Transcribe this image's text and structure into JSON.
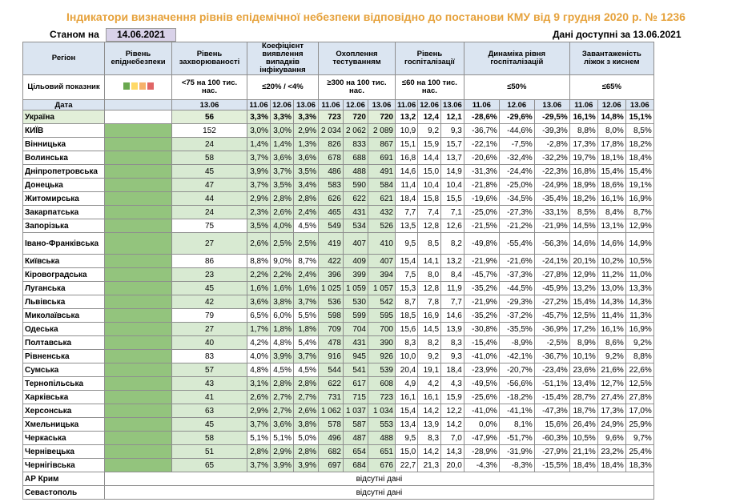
{
  "title": "Індикатори визначення рівнів епідемічної небезпеки відповідно до постанови КМУ від 9 грудня 2020 р. № 1236",
  "as_of_label": "Станом на",
  "as_of_date": "14.06.2021",
  "data_available": "Дані доступні за 13.06.2021",
  "headers": {
    "region": "Регіон",
    "danger_level": "Рівень епіднебезпеки",
    "incidence": "Рівень захворюваності",
    "positivity": "Коефіцієнт виявлення випадків інфікування",
    "testing": "Охоплення тестуванням",
    "hosp": "Рівень госпіталізації",
    "hosp_dyn": "Динаміка рівня госпіталізацій",
    "beds": "Завантаженість ліжок з киснем"
  },
  "target": {
    "label": "Цільовий показник",
    "incidence": "<75 на 100 тис. нас.",
    "positivity": "≤20% / <4%",
    "testing": "≥300 на 100 тис. нас.",
    "hosp": "≤60 на 100 тис. нас.",
    "hosp_dyn": "≤50%",
    "beds": "≤65%",
    "level_colors": [
      "#6aa84f",
      "#ffd966",
      "#f6b26b",
      "#e06666"
    ]
  },
  "date_row": {
    "label": "Дата",
    "incidence": "13.06",
    "d1": "11.06",
    "d2": "12.06",
    "d3": "13.06"
  },
  "colors": {
    "title": "#e6a23c",
    "header_bg": "#dbe5f1",
    "green_light": "#d8ead2",
    "green_dark": "#93c47d",
    "date_bg": "#d9d2e9"
  },
  "rows": [
    {
      "name": "Україна",
      "inc": "56",
      "p": [
        "3,3%",
        "3,3%",
        "3,3%"
      ],
      "t": [
        "723",
        "720",
        "720"
      ],
      "h": [
        "13,2",
        "12,4",
        "12,1"
      ],
      "hd": [
        "-28,6%",
        "-29,6%",
        "-29,5%"
      ],
      "b": [
        "16,1%",
        "14,8%",
        "15,1%"
      ]
    },
    {
      "name": "КИЇВ",
      "inc": "152",
      "p": [
        "3,0%",
        "3,0%",
        "2,9%"
      ],
      "t": [
        "2 034",
        "2 062",
        "2 089"
      ],
      "h": [
        "10,9",
        "9,2",
        "9,3"
      ],
      "hd": [
        "-36,7%",
        "-44,6%",
        "-39,3%"
      ],
      "b": [
        "8,8%",
        "8,0%",
        "8,5%"
      ]
    },
    {
      "name": "Вінницька",
      "inc": "24",
      "p": [
        "1,4%",
        "1,4%",
        "1,3%"
      ],
      "t": [
        "826",
        "833",
        "867"
      ],
      "h": [
        "15,1",
        "15,9",
        "15,7"
      ],
      "hd": [
        "-22,1%",
        "-7,5%",
        "-2,8%"
      ],
      "b": [
        "17,3%",
        "17,8%",
        "18,2%"
      ]
    },
    {
      "name": "Волинська",
      "inc": "58",
      "p": [
        "3,7%",
        "3,6%",
        "3,6%"
      ],
      "t": [
        "678",
        "688",
        "691"
      ],
      "h": [
        "16,8",
        "14,4",
        "13,7"
      ],
      "hd": [
        "-20,6%",
        "-32,4%",
        "-32,2%"
      ],
      "b": [
        "19,7%",
        "18,1%",
        "18,4%"
      ]
    },
    {
      "name": "Дніпропетровська",
      "inc": "45",
      "p": [
        "3,9%",
        "3,7%",
        "3,5%"
      ],
      "t": [
        "486",
        "488",
        "491"
      ],
      "h": [
        "14,6",
        "15,0",
        "14,9"
      ],
      "hd": [
        "-31,3%",
        "-24,4%",
        "-22,3%"
      ],
      "b": [
        "16,8%",
        "15,4%",
        "15,4%"
      ]
    },
    {
      "name": "Донецька",
      "inc": "47",
      "p": [
        "3,7%",
        "3,5%",
        "3,4%"
      ],
      "t": [
        "583",
        "590",
        "584"
      ],
      "h": [
        "11,4",
        "10,4",
        "10,4"
      ],
      "hd": [
        "-21,8%",
        "-25,0%",
        "-24,9%"
      ],
      "b": [
        "18,9%",
        "18,6%",
        "19,1%"
      ]
    },
    {
      "name": "Житомирська",
      "inc": "44",
      "p": [
        "2,9%",
        "2,8%",
        "2,8%"
      ],
      "t": [
        "626",
        "622",
        "621"
      ],
      "h": [
        "18,4",
        "15,8",
        "15,5"
      ],
      "hd": [
        "-19,6%",
        "-34,5%",
        "-35,4%"
      ],
      "b": [
        "18,2%",
        "16,1%",
        "16,9%"
      ]
    },
    {
      "name": "Закарпатська",
      "inc": "24",
      "p": [
        "2,3%",
        "2,6%",
        "2,4%"
      ],
      "t": [
        "465",
        "431",
        "432"
      ],
      "h": [
        "7,7",
        "7,4",
        "7,1"
      ],
      "hd": [
        "-25,0%",
        "-27,3%",
        "-33,1%"
      ],
      "b": [
        "8,5%",
        "8,4%",
        "8,7%"
      ]
    },
    {
      "name": "Запорізька",
      "inc": "75",
      "p": [
        "3,5%",
        "4,0%",
        "4,5%"
      ],
      "t": [
        "549",
        "534",
        "526"
      ],
      "h": [
        "13,5",
        "12,8",
        "12,6"
      ],
      "hd": [
        "-21,5%",
        "-21,2%",
        "-21,9%"
      ],
      "b": [
        "14,5%",
        "13,1%",
        "12,9%"
      ]
    },
    {
      "name": "Івано-Франківська",
      "inc": "27",
      "p": [
        "2,6%",
        "2,5%",
        "2,5%"
      ],
      "t": [
        "419",
        "407",
        "410"
      ],
      "h": [
        "9,5",
        "8,5",
        "8,2"
      ],
      "hd": [
        "-49,8%",
        "-55,4%",
        "-56,3%"
      ],
      "b": [
        "14,6%",
        "14,6%",
        "14,9%"
      ]
    },
    {
      "name": "Київська",
      "inc": "86",
      "p": [
        "8,8%",
        "9,0%",
        "8,7%"
      ],
      "t": [
        "422",
        "409",
        "407"
      ],
      "h": [
        "15,4",
        "14,1",
        "13,2"
      ],
      "hd": [
        "-21,9%",
        "-21,6%",
        "-24,1%"
      ],
      "b": [
        "20,1%",
        "10,2%",
        "10,5%"
      ]
    },
    {
      "name": "Кіровоградська",
      "inc": "23",
      "p": [
        "2,2%",
        "2,2%",
        "2,4%"
      ],
      "t": [
        "396",
        "399",
        "394"
      ],
      "h": [
        "7,5",
        "8,0",
        "8,4"
      ],
      "hd": [
        "-45,7%",
        "-37,3%",
        "-27,8%"
      ],
      "b": [
        "12,9%",
        "11,2%",
        "11,0%"
      ]
    },
    {
      "name": "Луганська",
      "inc": "45",
      "p": [
        "1,6%",
        "1,6%",
        "1,6%"
      ],
      "t": [
        "1 025",
        "1 059",
        "1 057"
      ],
      "h": [
        "15,3",
        "12,8",
        "11,9"
      ],
      "hd": [
        "-35,2%",
        "-44,5%",
        "-45,9%"
      ],
      "b": [
        "13,2%",
        "13,0%",
        "13,3%"
      ]
    },
    {
      "name": "Львівська",
      "inc": "42",
      "p": [
        "3,6%",
        "3,8%",
        "3,7%"
      ],
      "t": [
        "536",
        "530",
        "542"
      ],
      "h": [
        "8,7",
        "7,8",
        "7,7"
      ],
      "hd": [
        "-21,9%",
        "-29,3%",
        "-27,2%"
      ],
      "b": [
        "15,4%",
        "14,3%",
        "14,3%"
      ]
    },
    {
      "name": "Миколаївська",
      "inc": "79",
      "p": [
        "6,5%",
        "6,0%",
        "5,5%"
      ],
      "t": [
        "598",
        "599",
        "595"
      ],
      "h": [
        "18,5",
        "16,9",
        "14,6"
      ],
      "hd": [
        "-35,2%",
        "-37,2%",
        "-45,7%"
      ],
      "b": [
        "12,5%",
        "11,4%",
        "11,3%"
      ]
    },
    {
      "name": "Одеська",
      "inc": "27",
      "p": [
        "1,7%",
        "1,8%",
        "1,8%"
      ],
      "t": [
        "709",
        "704",
        "700"
      ],
      "h": [
        "15,6",
        "14,5",
        "13,9"
      ],
      "hd": [
        "-30,8%",
        "-35,5%",
        "-36,9%"
      ],
      "b": [
        "17,2%",
        "16,1%",
        "16,9%"
      ]
    },
    {
      "name": "Полтавська",
      "inc": "40",
      "p": [
        "4,2%",
        "4,8%",
        "5,4%"
      ],
      "t": [
        "478",
        "431",
        "390"
      ],
      "h": [
        "8,3",
        "8,2",
        "8,3"
      ],
      "hd": [
        "-15,4%",
        "-8,9%",
        "-2,5%"
      ],
      "b": [
        "8,9%",
        "8,6%",
        "9,2%"
      ]
    },
    {
      "name": "Рівненська",
      "inc": "83",
      "p": [
        "4,0%",
        "3,9%",
        "3,7%"
      ],
      "t": [
        "916",
        "945",
        "926"
      ],
      "h": [
        "10,0",
        "9,2",
        "9,3"
      ],
      "hd": [
        "-41,0%",
        "-42,1%",
        "-36,7%"
      ],
      "b": [
        "10,1%",
        "9,2%",
        "8,8%"
      ]
    },
    {
      "name": "Сумська",
      "inc": "57",
      "p": [
        "4,8%",
        "4,5%",
        "4,5%"
      ],
      "t": [
        "544",
        "541",
        "539"
      ],
      "h": [
        "20,4",
        "19,1",
        "18,4"
      ],
      "hd": [
        "-23,9%",
        "-20,7%",
        "-23,4%"
      ],
      "b": [
        "23,6%",
        "21,6%",
        "22,6%"
      ]
    },
    {
      "name": "Тернопільська",
      "inc": "43",
      "p": [
        "3,1%",
        "2,8%",
        "2,8%"
      ],
      "t": [
        "622",
        "617",
        "608"
      ],
      "h": [
        "4,9",
        "4,2",
        "4,3"
      ],
      "hd": [
        "-49,5%",
        "-56,6%",
        "-51,1%"
      ],
      "b": [
        "13,4%",
        "12,7%",
        "12,5%"
      ]
    },
    {
      "name": "Харківська",
      "inc": "41",
      "p": [
        "2,6%",
        "2,7%",
        "2,7%"
      ],
      "t": [
        "731",
        "715",
        "723"
      ],
      "h": [
        "16,1",
        "16,1",
        "15,9"
      ],
      "hd": [
        "-25,6%",
        "-18,2%",
        "-15,4%"
      ],
      "b": [
        "28,7%",
        "27,4%",
        "27,8%"
      ]
    },
    {
      "name": "Херсонська",
      "inc": "63",
      "p": [
        "2,9%",
        "2,7%",
        "2,6%"
      ],
      "t": [
        "1 062",
        "1 037",
        "1 034"
      ],
      "h": [
        "15,4",
        "14,2",
        "12,2"
      ],
      "hd": [
        "-41,0%",
        "-41,1%",
        "-47,3%"
      ],
      "b": [
        "18,7%",
        "17,3%",
        "17,0%"
      ]
    },
    {
      "name": "Хмельницька",
      "inc": "45",
      "p": [
        "3,7%",
        "3,6%",
        "3,8%"
      ],
      "t": [
        "578",
        "587",
        "553"
      ],
      "h": [
        "13,4",
        "13,9",
        "14,2"
      ],
      "hd": [
        "0,0%",
        "8,1%",
        "15,6%"
      ],
      "b": [
        "26,4%",
        "24,9%",
        "25,9%"
      ]
    },
    {
      "name": "Черкаська",
      "inc": "58",
      "p": [
        "5,1%",
        "5,1%",
        "5,0%"
      ],
      "t": [
        "496",
        "487",
        "488"
      ],
      "h": [
        "9,5",
        "8,3",
        "7,0"
      ],
      "hd": [
        "-47,9%",
        "-51,7%",
        "-60,3%"
      ],
      "b": [
        "10,5%",
        "9,6%",
        "9,7%"
      ]
    },
    {
      "name": "Чернівецька",
      "inc": "51",
      "p": [
        "2,8%",
        "2,9%",
        "2,8%"
      ],
      "t": [
        "682",
        "654",
        "651"
      ],
      "h": [
        "15,0",
        "14,2",
        "14,3"
      ],
      "hd": [
        "-28,9%",
        "-31,9%",
        "-27,9%"
      ],
      "b": [
        "21,1%",
        "23,2%",
        "25,4%"
      ]
    },
    {
      "name": "Чернігівська",
      "inc": "65",
      "p": [
        "3,7%",
        "3,9%",
        "3,9%"
      ],
      "t": [
        "697",
        "684",
        "676"
      ],
      "h": [
        "22,7",
        "21,3",
        "20,0"
      ],
      "hd": [
        "-4,3%",
        "-8,3%",
        "-15,5%"
      ],
      "b": [
        "18,4%",
        "18,4%",
        "18,3%"
      ]
    }
  ],
  "missing": [
    {
      "name": "АР Крим",
      "text": "відсутні дані"
    },
    {
      "name": "Севастополь",
      "text": "відсутні дані"
    }
  ]
}
